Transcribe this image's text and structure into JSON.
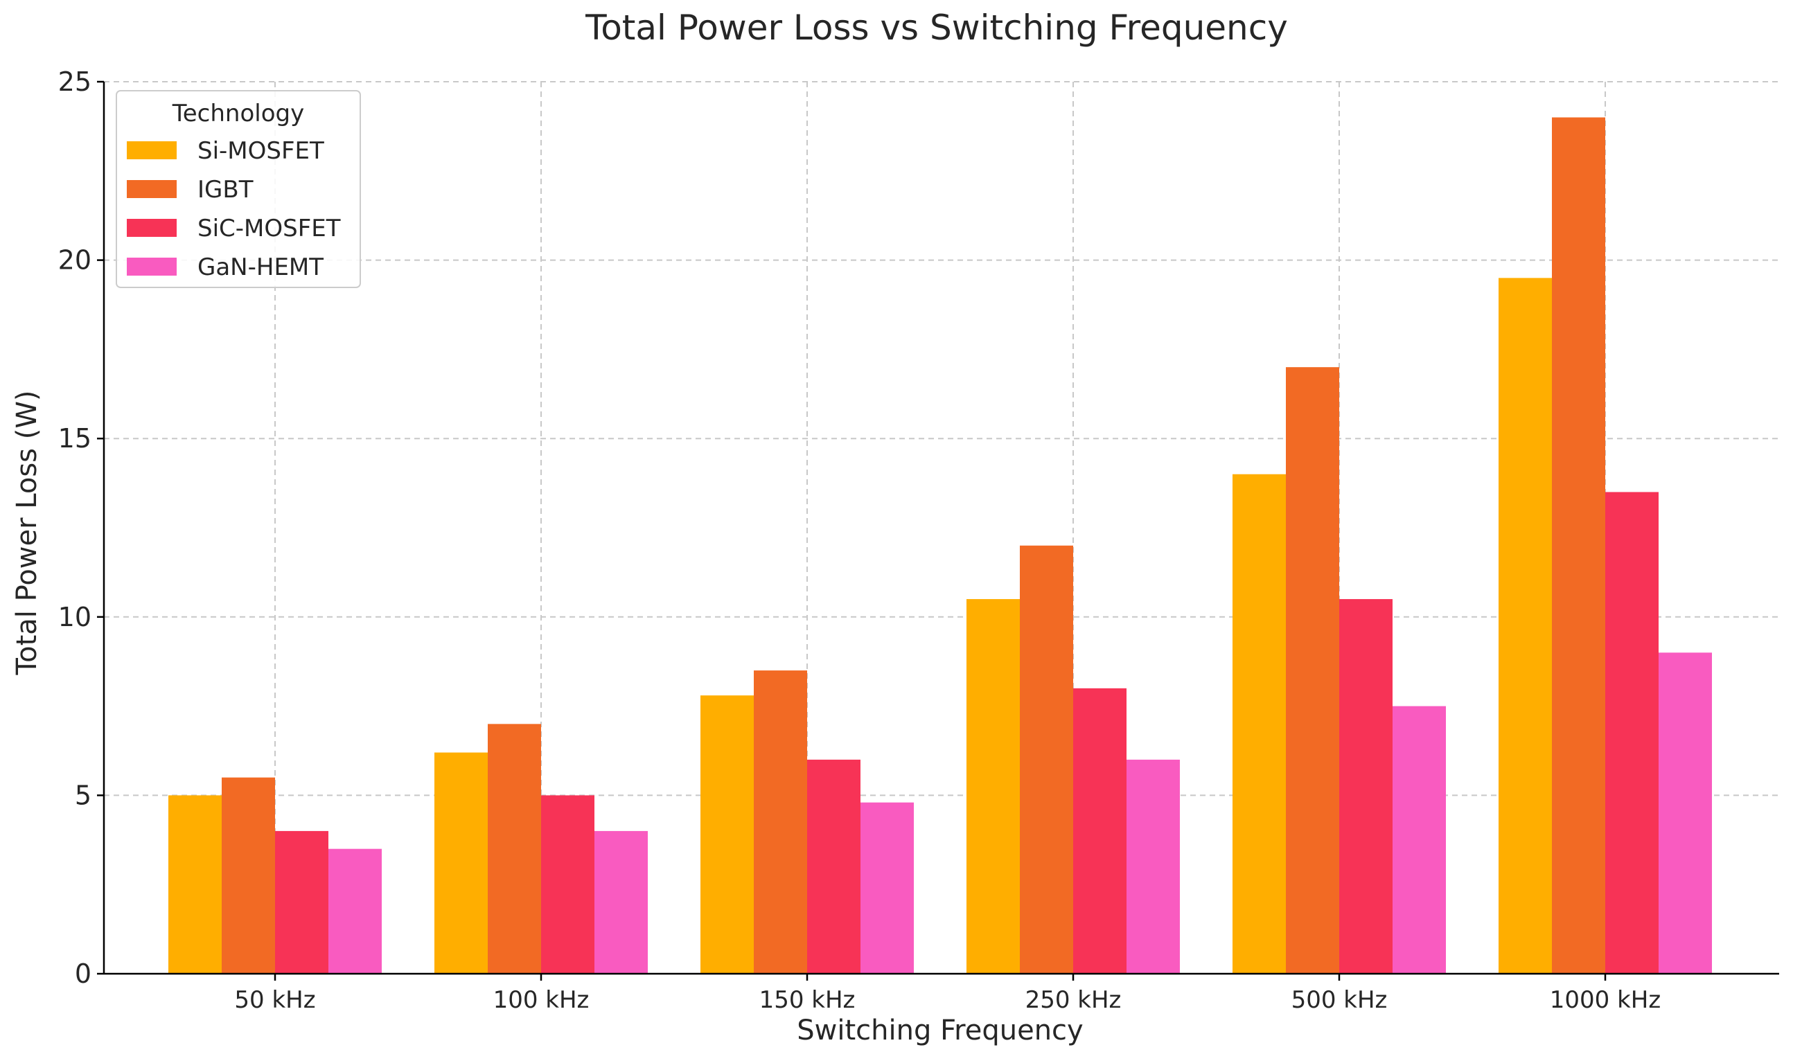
{
  "chart_data": {
    "type": "bar",
    "title": "Total Power Loss vs Switching Frequency",
    "xlabel": "Switching Frequency",
    "ylabel": "Total Power Loss (W)",
    "ylim": [
      0,
      25
    ],
    "yticks": [
      "0",
      "5",
      "10",
      "15",
      "20",
      "25"
    ],
    "grid": true,
    "legend_title": "Technology",
    "legend_position": "top-left",
    "categories": [
      "50 kHz",
      "100 kHz",
      "150 kHz",
      "250 kHz",
      "500 kHz",
      "1000 kHz"
    ],
    "series": [
      {
        "name": "Si-MOSFET",
        "color": "#FFAE00",
        "values": [
          5.0,
          6.2,
          7.8,
          10.5,
          14.0,
          19.5
        ]
      },
      {
        "name": "IGBT",
        "color": "#F26A24",
        "values": [
          5.5,
          7.0,
          8.5,
          12.0,
          17.0,
          24.0
        ]
      },
      {
        "name": "SiC-MOSFET",
        "color": "#F73356",
        "values": [
          4.0,
          5.0,
          6.0,
          8.0,
          10.5,
          13.5
        ]
      },
      {
        "name": "GaN-HEMT",
        "color": "#F95BC0",
        "values": [
          3.5,
          4.0,
          4.8,
          6.0,
          7.5,
          9.0
        ]
      }
    ]
  }
}
